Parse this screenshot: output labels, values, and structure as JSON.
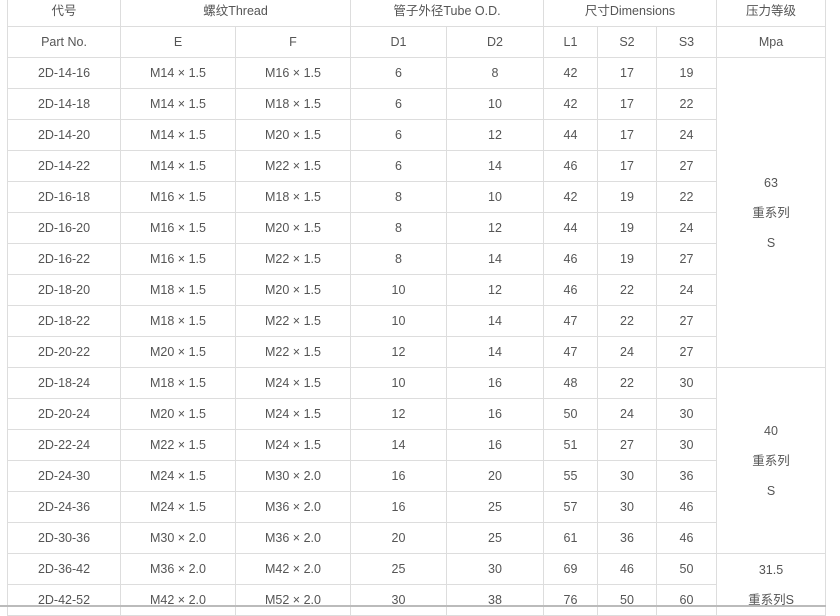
{
  "header": {
    "code": "代号",
    "part_no": "Part No.",
    "thread": "螺纹Thread",
    "e": "E",
    "f": "F",
    "tube": "管子外径Tube O.D.",
    "d1": "D1",
    "d2": "D2",
    "dimensions": "尺寸Dimensions",
    "l1": "L1",
    "s2": "S2",
    "s3": "S3",
    "pressure": "压力等级",
    "mpa": "Mpa"
  },
  "rows": [
    [
      "2D-14-16",
      "M14 × 1.5",
      "M16 × 1.5",
      "6",
      "8",
      "42",
      "17",
      "19"
    ],
    [
      "2D-14-18",
      "M14 × 1.5",
      "M18 × 1.5",
      "6",
      "10",
      "42",
      "17",
      "22"
    ],
    [
      "2D-14-20",
      "M14 × 1.5",
      "M20 × 1.5",
      "6",
      "12",
      "44",
      "17",
      "24"
    ],
    [
      "2D-14-22",
      "M14 × 1.5",
      "M22 × 1.5",
      "6",
      "14",
      "46",
      "17",
      "27"
    ],
    [
      "2D-16-18",
      "M16 × 1.5",
      "M18 × 1.5",
      "8",
      "10",
      "42",
      "19",
      "22"
    ],
    [
      "2D-16-20",
      "M16 × 1.5",
      "M20 × 1.5",
      "8",
      "12",
      "44",
      "19",
      "24"
    ],
    [
      "2D-16-22",
      "M16 × 1.5",
      "M22 × 1.5",
      "8",
      "14",
      "46",
      "19",
      "27"
    ],
    [
      "2D-18-20",
      "M18 × 1.5",
      "M20 × 1.5",
      "10",
      "12",
      "46",
      "22",
      "24"
    ],
    [
      "2D-18-22",
      "M18 × 1.5",
      "M22 × 1.5",
      "10",
      "14",
      "47",
      "22",
      "27"
    ],
    [
      "2D-20-22",
      "M20 × 1.5",
      "M22 × 1.5",
      "12",
      "14",
      "47",
      "24",
      "27"
    ],
    [
      "2D-18-24",
      "M18 × 1.5",
      "M24 × 1.5",
      "10",
      "16",
      "48",
      "22",
      "30"
    ],
    [
      "2D-20-24",
      "M20 × 1.5",
      "M24 × 1.5",
      "12",
      "16",
      "50",
      "24",
      "30"
    ],
    [
      "2D-22-24",
      "M22 × 1.5",
      "M24 × 1.5",
      "14",
      "16",
      "51",
      "27",
      "30"
    ],
    [
      "2D-24-30",
      "M24 × 1.5",
      "M30 × 2.0",
      "16",
      "20",
      "55",
      "30",
      "36"
    ],
    [
      "2D-24-36",
      "M24 × 1.5",
      "M36 × 2.0",
      "16",
      "25",
      "57",
      "30",
      "46"
    ],
    [
      "2D-30-36",
      "M30 × 2.0",
      "M36 × 2.0",
      "20",
      "25",
      "61",
      "36",
      "46"
    ],
    [
      "2D-36-42",
      "M36 × 2.0",
      "M42 × 2.0",
      "25",
      "30",
      "69",
      "46",
      "50"
    ],
    [
      "2D-42-52",
      "M42 × 2.0",
      "M52 × 2.0",
      "30",
      "38",
      "76",
      "50",
      "60"
    ]
  ],
  "pressure_groups": [
    {
      "value": "63",
      "series": "重系列",
      "suffix": "S",
      "rows": 10
    },
    {
      "value": "40",
      "series": "重系列",
      "suffix": "S",
      "rows": 6
    },
    {
      "value": "31.5",
      "series": "重系列S",
      "rows": 2
    }
  ]
}
